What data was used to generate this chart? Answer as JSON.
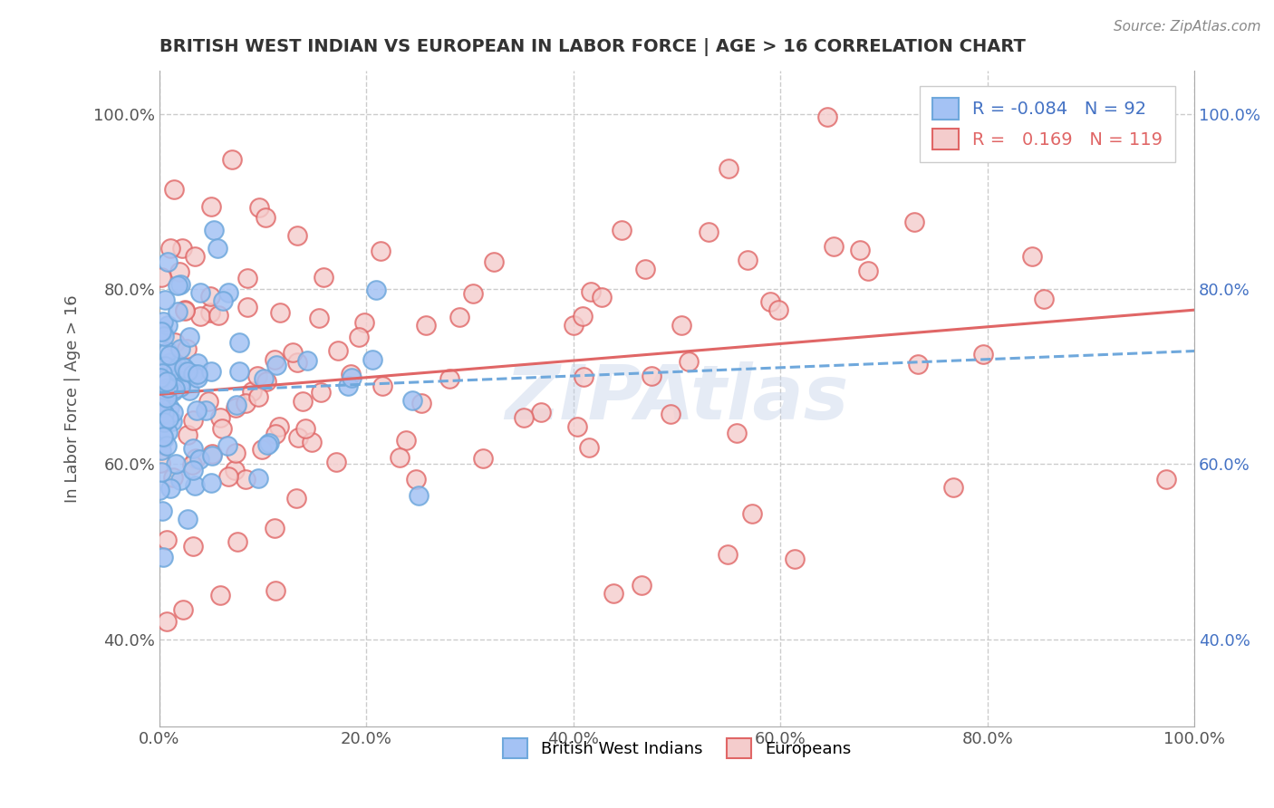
{
  "title": "BRITISH WEST INDIAN VS EUROPEAN IN LABOR FORCE | AGE > 16 CORRELATION CHART",
  "source": "Source: ZipAtlas.com",
  "ylabel": "In Labor Force | Age > 16",
  "xlim": [
    0.0,
    1.0
  ],
  "ylim": [
    0.3,
    1.05
  ],
  "x_ticks": [
    0.0,
    0.2,
    0.4,
    0.6,
    0.8,
    1.0
  ],
  "x_tick_labels": [
    "0.0%",
    "20.0%",
    "40.0%",
    "60.0%",
    "80.0%",
    "100.0%"
  ],
  "y_ticks": [
    0.4,
    0.6,
    0.8,
    1.0
  ],
  "y_tick_labels": [
    "40.0%",
    "60.0%",
    "80.0%",
    "100.0%"
  ],
  "legend_r1": "-0.084",
  "legend_n1": "92",
  "legend_r2": "0.169",
  "legend_n2": "119",
  "blue_edge": "#6fa8dc",
  "blue_fill": "#a4c2f4",
  "pink_edge": "#e06666",
  "pink_fill": "#f4cccc",
  "trend_blue": "#6fa8dc",
  "trend_pink": "#e06666",
  "watermark": "ZIPAtlas",
  "watermark_color": "#c0cfe8",
  "N1": 92,
  "N2": 119,
  "seed": 42
}
